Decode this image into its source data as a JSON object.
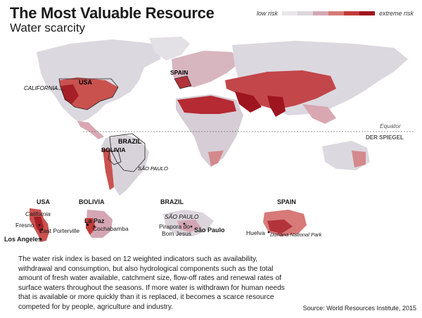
{
  "title": "The Most Valuable Resource",
  "subtitle": "Water scarcity",
  "legend": {
    "low_label": "low risk",
    "high_label": "extreme risk",
    "colors": [
      "#e8e6ea",
      "#dcd5dc",
      "#d4a6b3",
      "#d77a78",
      "#c23b3b",
      "#9e1520"
    ]
  },
  "map_labels": {
    "usa": "USA",
    "california": "CALIFORNIA",
    "spain": "SPAIN",
    "brazil": "BRAZIL",
    "bolivia": "BOLIVIA",
    "sao_paulo": "SÃO PAULO",
    "equator": "Equator",
    "brand": "DER SPIEGEL"
  },
  "insets": {
    "usa": {
      "title": "USA",
      "region": "California",
      "places": [
        "Fresno",
        "East Porterville",
        "Los Angeles"
      ]
    },
    "bolivia": {
      "title": "BOLIVIA",
      "places": [
        "La Paz",
        "Cochabamba"
      ]
    },
    "brazil": {
      "title": "BRAZIL",
      "region": "SÃO PAULO",
      "places": [
        "Pirapora do",
        "Bom Jesus",
        "São Paulo"
      ]
    },
    "spain": {
      "title": "SPAIN",
      "places": [
        "Huelva",
        "Doñana National Park"
      ]
    }
  },
  "description": "The water risk index is based on 12 weighted indicators such as availability, withdrawal and consumption, but also hydrological components such as the total amount of fresh water available, catchment size, flow-off rates and renewal rates of surface waters throughout the seasons. If more water is withdrawn for human needs that is available or more quickly than it is replaced, it becomes a scarce resource competed for by people, agriculture and industry.",
  "source": "Source: World Resources Institute, 2015"
}
